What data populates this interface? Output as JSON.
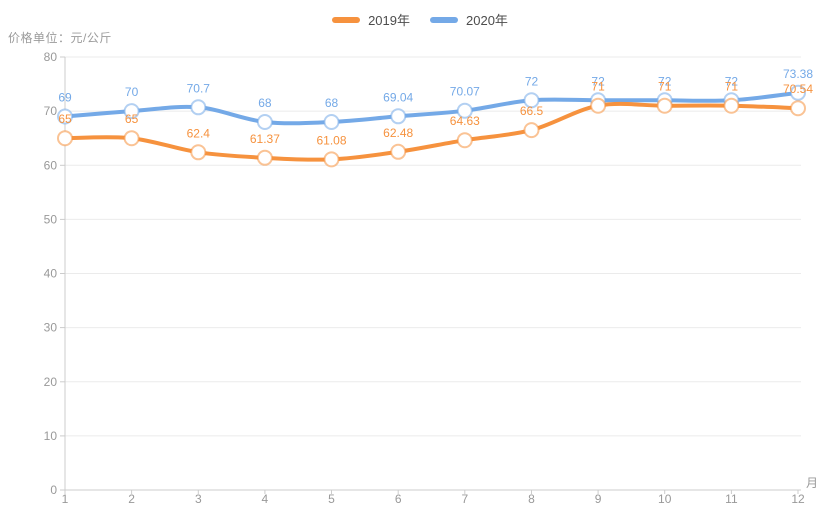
{
  "chart_data": {
    "type": "line",
    "title": "价格单位：元/公斤",
    "xlabel": "月",
    "ylabel": "",
    "categories": [
      "1",
      "2",
      "3",
      "4",
      "5",
      "6",
      "7",
      "8",
      "9",
      "10",
      "11",
      "12"
    ],
    "series": [
      {
        "name": "2019年",
        "color": "#f6923e",
        "values": [
          65,
          65,
          62.4,
          61.37,
          61.08,
          62.48,
          64.63,
          66.5,
          71,
          71,
          71,
          70.54
        ]
      },
      {
        "name": "2020年",
        "color": "#74a9e7",
        "values": [
          69,
          70,
          70.7,
          68,
          68,
          69.04,
          70.07,
          72,
          72,
          72,
          72,
          73.38
        ]
      }
    ],
    "ylim": [
      0,
      80
    ],
    "yticks": [
      0,
      10,
      20,
      30,
      40,
      50,
      60,
      70,
      80
    ],
    "grid": true,
    "smooth": true,
    "legend_position": "top",
    "marker": "hollow-circle",
    "colors": {
      "axis_line": "#cccccc",
      "grid_line": "#ebebeb",
      "tick_label": "#999999",
      "title_text": "#9b9b9b",
      "legend_text": "#4d4d4d",
      "marker_fill": "#ffffff"
    }
  }
}
